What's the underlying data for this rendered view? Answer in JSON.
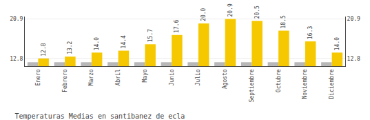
{
  "chart_data": {
    "type": "bar",
    "title": "Temperaturas Medias en santibanez de ecla",
    "categories": [
      "Enero",
      "Febrero",
      "Marzo",
      "Abril",
      "Mayo",
      "Junio",
      "Julio",
      "Agosto",
      "Septiembre",
      "Octubre",
      "Noviembre",
      "Diciembre"
    ],
    "series": [
      {
        "color": "#B8B8B8",
        "values": [
          12.0,
          12.0,
          12.0,
          12.0,
          12.0,
          12.0,
          12.0,
          12.0,
          12.0,
          12.0,
          12.0,
          12.0
        ]
      },
      {
        "color": "#F5C800",
        "values": [
          12.8,
          13.2,
          14.0,
          14.4,
          15.7,
          17.6,
          20.0,
          20.9,
          20.5,
          18.5,
          16.3,
          14.0
        ],
        "value_labels": [
          "12.8",
          "13.2",
          "14.0",
          "14.4",
          "15.7",
          "17.6",
          "20.0",
          "20.9",
          "20.5",
          "18.5",
          "16.3",
          "14.0"
        ],
        "data_labels": true
      }
    ],
    "ylim": [
      11.2,
      21.4
    ],
    "yticks": [
      12.8,
      20.9
    ],
    "y2lim": [
      11.2,
      21.4
    ],
    "y2ticks": [
      12.8,
      20.9
    ],
    "grid": true
  }
}
